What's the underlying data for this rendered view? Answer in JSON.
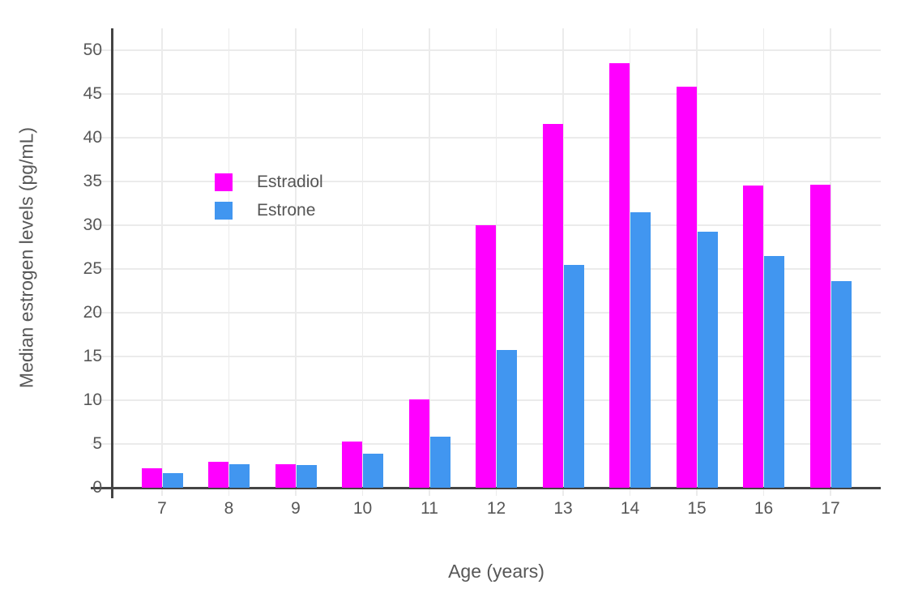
{
  "chart_data": {
    "type": "bar",
    "title": "",
    "xlabel": "Age (years)",
    "ylabel": "Median estrogen levels (pg/mL)",
    "categories": [
      7,
      8,
      9,
      10,
      11,
      12,
      13,
      14,
      15,
      16,
      17
    ],
    "series": [
      {
        "name": "Estradiol",
        "color": "#ff00ff",
        "values": [
          2.2,
          3.0,
          2.7,
          5.3,
          10.1,
          30.0,
          41.6,
          48.5,
          45.8,
          34.5,
          34.6
        ]
      },
      {
        "name": "Estrone",
        "color": "#4196f0",
        "values": [
          1.7,
          2.7,
          2.6,
          3.9,
          5.8,
          15.7,
          25.5,
          31.5,
          29.3,
          26.5,
          23.6
        ]
      }
    ],
    "ylim": [
      0,
      52.5
    ],
    "yticks": [
      0,
      5,
      10,
      15,
      20,
      25,
      30,
      35,
      40,
      45,
      50
    ],
    "grid": true,
    "legend_position": "inside-top-left",
    "bar_mode": "grouped"
  },
  "colors": {
    "axis": "#444444",
    "gridline": "#ebebeb",
    "tick_text": "#575757",
    "background": "#ffffff"
  }
}
